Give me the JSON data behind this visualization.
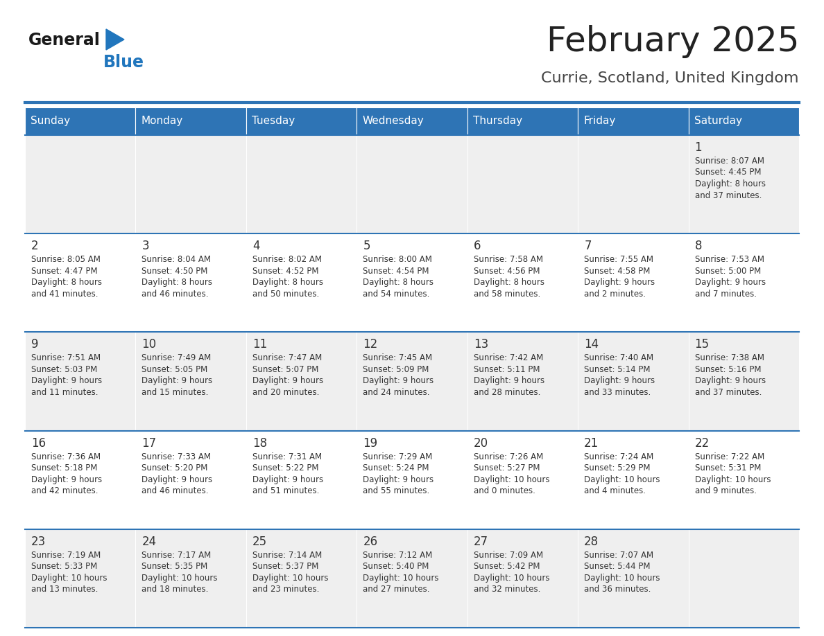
{
  "title": "February 2025",
  "subtitle": "Currie, Scotland, United Kingdom",
  "header_bg": "#2E74B5",
  "header_text": "#FFFFFF",
  "cell_bg_odd": "#EFEFEF",
  "cell_bg_even": "#FFFFFF",
  "cell_border": "#2E74B5",
  "day_headers": [
    "Sunday",
    "Monday",
    "Tuesday",
    "Wednesday",
    "Thursday",
    "Friday",
    "Saturday"
  ],
  "title_color": "#222222",
  "subtitle_color": "#444444",
  "logo_general_color": "#1a1a1a",
  "logo_blue_color": "#2176BD",
  "calendar": [
    [
      null,
      null,
      null,
      null,
      null,
      null,
      {
        "day": 1,
        "sunrise": "8:07 AM",
        "sunset": "4:45 PM",
        "daylight": "8 hours\nand 37 minutes."
      }
    ],
    [
      {
        "day": 2,
        "sunrise": "8:05 AM",
        "sunset": "4:47 PM",
        "daylight": "8 hours\nand 41 minutes."
      },
      {
        "day": 3,
        "sunrise": "8:04 AM",
        "sunset": "4:50 PM",
        "daylight": "8 hours\nand 46 minutes."
      },
      {
        "day": 4,
        "sunrise": "8:02 AM",
        "sunset": "4:52 PM",
        "daylight": "8 hours\nand 50 minutes."
      },
      {
        "day": 5,
        "sunrise": "8:00 AM",
        "sunset": "4:54 PM",
        "daylight": "8 hours\nand 54 minutes."
      },
      {
        "day": 6,
        "sunrise": "7:58 AM",
        "sunset": "4:56 PM",
        "daylight": "8 hours\nand 58 minutes."
      },
      {
        "day": 7,
        "sunrise": "7:55 AM",
        "sunset": "4:58 PM",
        "daylight": "9 hours\nand 2 minutes."
      },
      {
        "day": 8,
        "sunrise": "7:53 AM",
        "sunset": "5:00 PM",
        "daylight": "9 hours\nand 7 minutes."
      }
    ],
    [
      {
        "day": 9,
        "sunrise": "7:51 AM",
        "sunset": "5:03 PM",
        "daylight": "9 hours\nand 11 minutes."
      },
      {
        "day": 10,
        "sunrise": "7:49 AM",
        "sunset": "5:05 PM",
        "daylight": "9 hours\nand 15 minutes."
      },
      {
        "day": 11,
        "sunrise": "7:47 AM",
        "sunset": "5:07 PM",
        "daylight": "9 hours\nand 20 minutes."
      },
      {
        "day": 12,
        "sunrise": "7:45 AM",
        "sunset": "5:09 PM",
        "daylight": "9 hours\nand 24 minutes."
      },
      {
        "day": 13,
        "sunrise": "7:42 AM",
        "sunset": "5:11 PM",
        "daylight": "9 hours\nand 28 minutes."
      },
      {
        "day": 14,
        "sunrise": "7:40 AM",
        "sunset": "5:14 PM",
        "daylight": "9 hours\nand 33 minutes."
      },
      {
        "day": 15,
        "sunrise": "7:38 AM",
        "sunset": "5:16 PM",
        "daylight": "9 hours\nand 37 minutes."
      }
    ],
    [
      {
        "day": 16,
        "sunrise": "7:36 AM",
        "sunset": "5:18 PM",
        "daylight": "9 hours\nand 42 minutes."
      },
      {
        "day": 17,
        "sunrise": "7:33 AM",
        "sunset": "5:20 PM",
        "daylight": "9 hours\nand 46 minutes."
      },
      {
        "day": 18,
        "sunrise": "7:31 AM",
        "sunset": "5:22 PM",
        "daylight": "9 hours\nand 51 minutes."
      },
      {
        "day": 19,
        "sunrise": "7:29 AM",
        "sunset": "5:24 PM",
        "daylight": "9 hours\nand 55 minutes."
      },
      {
        "day": 20,
        "sunrise": "7:26 AM",
        "sunset": "5:27 PM",
        "daylight": "10 hours\nand 0 minutes."
      },
      {
        "day": 21,
        "sunrise": "7:24 AM",
        "sunset": "5:29 PM",
        "daylight": "10 hours\nand 4 minutes."
      },
      {
        "day": 22,
        "sunrise": "7:22 AM",
        "sunset": "5:31 PM",
        "daylight": "10 hours\nand 9 minutes."
      }
    ],
    [
      {
        "day": 23,
        "sunrise": "7:19 AM",
        "sunset": "5:33 PM",
        "daylight": "10 hours\nand 13 minutes."
      },
      {
        "day": 24,
        "sunrise": "7:17 AM",
        "sunset": "5:35 PM",
        "daylight": "10 hours\nand 18 minutes."
      },
      {
        "day": 25,
        "sunrise": "7:14 AM",
        "sunset": "5:37 PM",
        "daylight": "10 hours\nand 23 minutes."
      },
      {
        "day": 26,
        "sunrise": "7:12 AM",
        "sunset": "5:40 PM",
        "daylight": "10 hours\nand 27 minutes."
      },
      {
        "day": 27,
        "sunrise": "7:09 AM",
        "sunset": "5:42 PM",
        "daylight": "10 hours\nand 32 minutes."
      },
      {
        "day": 28,
        "sunrise": "7:07 AM",
        "sunset": "5:44 PM",
        "daylight": "10 hours\nand 36 minutes."
      },
      null
    ]
  ]
}
